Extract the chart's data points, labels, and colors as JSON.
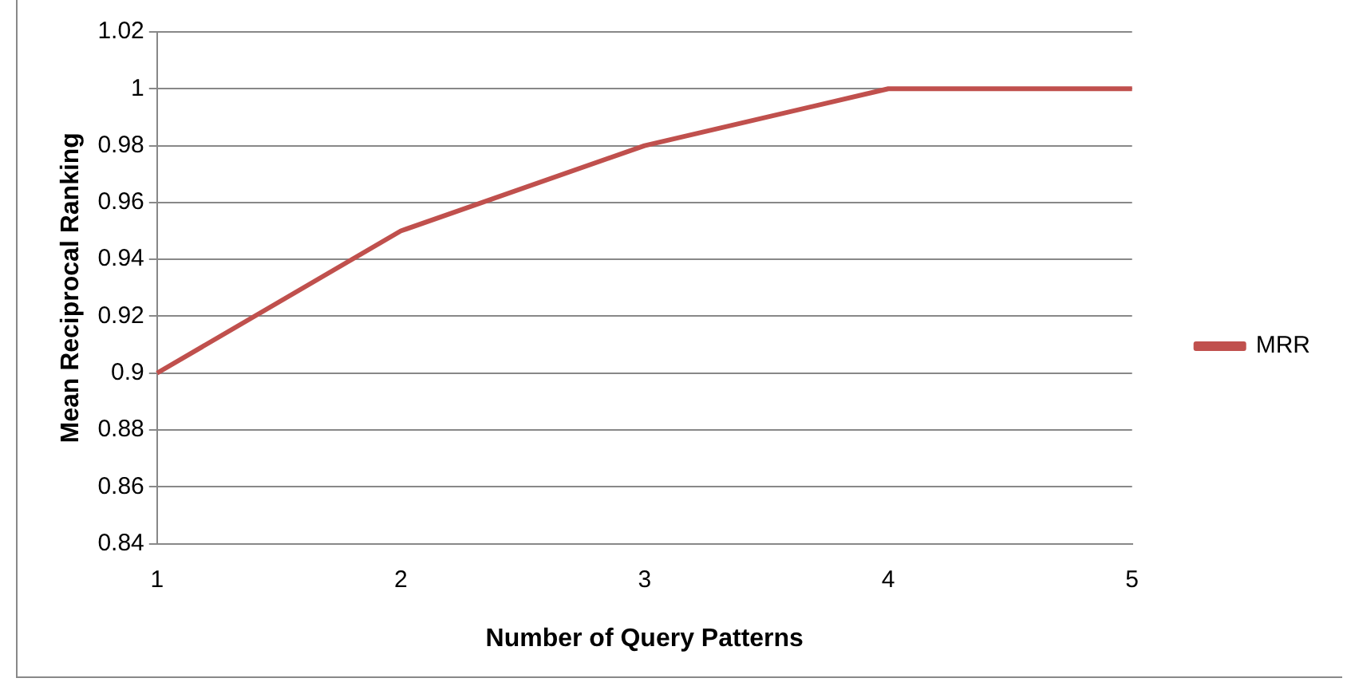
{
  "chart_data": {
    "type": "line",
    "xlabel": "Number of Query Patterns",
    "ylabel": "Mean Reciprocal Ranking",
    "categories": [
      "1",
      "2",
      "3",
      "4",
      "5"
    ],
    "series": [
      {
        "name": "MRR",
        "color": "#c0504d",
        "values": [
          0.9,
          0.95,
          0.98,
          1,
          1
        ]
      }
    ],
    "ylim": [
      0.84,
      1.02
    ],
    "yticks": [
      0.84,
      0.86,
      0.88,
      0.9,
      0.92,
      0.94,
      0.96,
      0.98,
      1,
      1.02
    ],
    "grid": "y",
    "legend": "right",
    "marker": "none",
    "line_style": "solid"
  }
}
